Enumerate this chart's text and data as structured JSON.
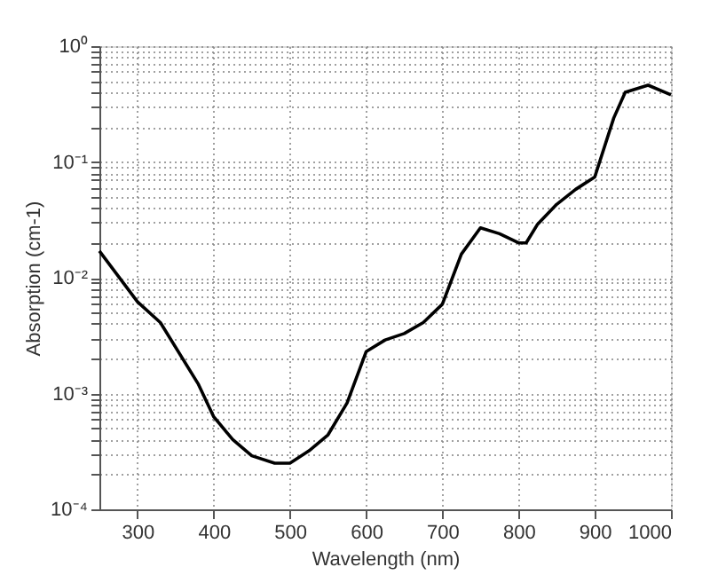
{
  "chart_data": {
    "type": "line",
    "xlabel": "Wavelength (nm)",
    "ylabel": "Absorption (cm-1)",
    "x": [
      250,
      300,
      330,
      380,
      400,
      425,
      450,
      480,
      500,
      525,
      550,
      575,
      600,
      625,
      650,
      675,
      700,
      725,
      750,
      775,
      800,
      810,
      825,
      850,
      875,
      900,
      925,
      940,
      970,
      1000
    ],
    "series": [
      {
        "color": "#000000",
        "values": [
          0.017,
          0.0062,
          0.0041,
          0.0012,
          0.00063,
          0.0004,
          0.00029,
          0.00025,
          0.00025,
          0.00032,
          0.00044,
          0.00083,
          0.0023,
          0.0029,
          0.0033,
          0.0041,
          0.0059,
          0.016,
          0.027,
          0.024,
          0.02,
          0.02,
          0.029,
          0.043,
          0.058,
          0.074,
          0.24,
          0.4,
          0.46,
          0.38
        ]
      }
    ],
    "log": "y",
    "xlim": [
      250,
      1000
    ],
    "ylim": [
      0.0001,
      1
    ],
    "xticks": [
      300,
      400,
      500,
      600,
      700,
      800,
      900,
      1000
    ],
    "yticks": [
      {
        "value": 0.0001,
        "label": "10⁻⁴"
      },
      {
        "value": 0.0002,
        "label": null
      },
      {
        "value": 0.0003,
        "label": null
      },
      {
        "value": 0.0004,
        "label": null
      },
      {
        "value": 0.0005,
        "label": null
      },
      {
        "value": 0.0006,
        "label": null
      },
      {
        "value": 0.0007,
        "label": null
      },
      {
        "value": 0.0008,
        "label": null
      },
      {
        "value": 0.0009,
        "label": null
      },
      {
        "value": 0.001,
        "label": "10⁻³"
      },
      {
        "value": 0.002,
        "label": null
      },
      {
        "value": 0.003,
        "label": null
      },
      {
        "value": 0.004,
        "label": null
      },
      {
        "value": 0.005,
        "label": null
      },
      {
        "value": 0.006,
        "label": null
      },
      {
        "value": 0.007,
        "label": null
      },
      {
        "value": 0.008,
        "label": null
      },
      {
        "value": 0.009,
        "label": null
      },
      {
        "value": 0.01,
        "label": "10⁻²"
      },
      {
        "value": 0.02,
        "label": null
      },
      {
        "value": 0.03,
        "label": null
      },
      {
        "value": 0.04,
        "label": null
      },
      {
        "value": 0.05,
        "label": null
      },
      {
        "value": 0.06,
        "label": null
      },
      {
        "value": 0.07,
        "label": null
      },
      {
        "value": 0.08,
        "label": null
      },
      {
        "value": 0.09,
        "label": null
      },
      {
        "value": 0.1,
        "label": "10⁻¹"
      },
      {
        "value": 0.2,
        "label": null
      },
      {
        "value": 0.3,
        "label": null
      },
      {
        "value": 0.4,
        "label": null
      },
      {
        "value": 0.5,
        "label": null
      },
      {
        "value": 0.6,
        "label": null
      },
      {
        "value": 0.7,
        "label": null
      },
      {
        "value": 0.8,
        "label": null
      },
      {
        "value": 0.9,
        "label": null
      },
      {
        "value": 1,
        "label": "10⁰"
      }
    ],
    "grid": true,
    "line_style": "solid",
    "marker": "none"
  }
}
